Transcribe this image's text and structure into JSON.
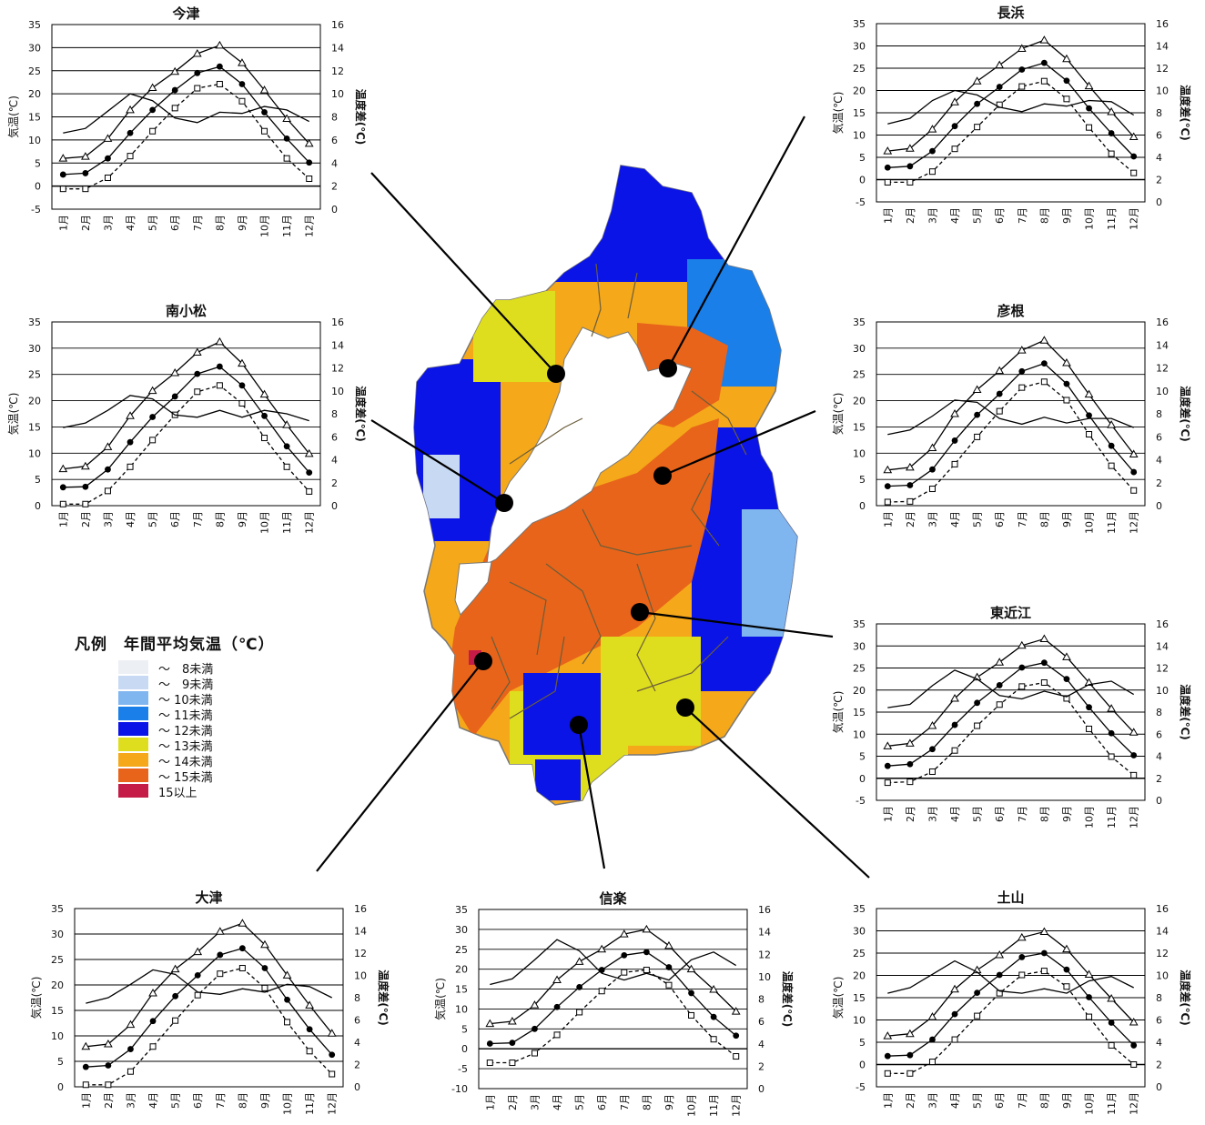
{
  "legend": {
    "title": "凡例　年間平均気温（℃）",
    "items": [
      {
        "label": "～　8未満",
        "color": "#eceff3"
      },
      {
        "label": "～　9未満",
        "color": "#c8daf3"
      },
      {
        "label": "～ 10未満",
        "color": "#7fb6ef"
      },
      {
        "label": "～ 11未満",
        "color": "#1a7fe8"
      },
      {
        "label": "～ 12未満",
        "color": "#0a14e6"
      },
      {
        "label": "～ 13未満",
        "color": "#dede1e"
      },
      {
        "label": "～ 14未満",
        "color": "#f5a81a"
      },
      {
        "label": "～ 15未満",
        "color": "#e8641a"
      },
      {
        "label": "15以上",
        "color": "#c41c46"
      }
    ]
  },
  "chart_common": {
    "categories": [
      "1月",
      "2月",
      "3月",
      "4月",
      "5月",
      "6月",
      "7月",
      "8月",
      "9月",
      "10月",
      "11月",
      "12月"
    ],
    "left_axis_label": "気温(℃)",
    "right_axis_label": "温度差(℃)",
    "right_ticks": [
      "0",
      "2",
      "4",
      "6",
      "8",
      "10",
      "12",
      "14",
      "16"
    ]
  },
  "chart_data": [
    {
      "type": "line",
      "title": "今津",
      "ylim": [
        -5,
        35
      ],
      "y2lim": [
        0,
        16
      ],
      "categories": [
        "1月",
        "2月",
        "3月",
        "4月",
        "5月",
        "6月",
        "7月",
        "8月",
        "9月",
        "10月",
        "11月",
        "12月"
      ],
      "series": [
        {
          "marker": "triangle",
          "values": [
            6.0,
            6.4,
            10.3,
            16.5,
            21.3,
            24.8,
            28.7,
            30.5,
            26.7,
            20.8,
            14.6,
            9.2
          ]
        },
        {
          "marker": "circle",
          "values": [
            2.5,
            2.8,
            6.0,
            11.5,
            16.5,
            20.8,
            24.5,
            25.9,
            22.1,
            16.0,
            10.3,
            5.1
          ]
        },
        {
          "marker": "square",
          "values": [
            -0.6,
            -0.6,
            1.8,
            6.5,
            11.9,
            16.9,
            21.2,
            22.1,
            18.4,
            11.9,
            6.0,
            1.6
          ]
        },
        {
          "marker": "none",
          "axis": "right",
          "values": [
            6.6,
            7.0,
            8.5,
            10.0,
            9.4,
            7.9,
            7.5,
            8.4,
            8.3,
            8.9,
            8.6,
            7.6
          ]
        }
      ]
    },
    {
      "type": "line",
      "title": "長浜",
      "ylim": [
        -5,
        35
      ],
      "y2lim": [
        0,
        16
      ],
      "categories": [
        "1月",
        "2月",
        "3月",
        "4月",
        "5月",
        "6月",
        "7月",
        "8月",
        "9月",
        "10月",
        "11月",
        "12月"
      ],
      "series": [
        {
          "marker": "triangle",
          "values": [
            6.4,
            7.0,
            11.3,
            17.4,
            22.1,
            25.7,
            29.4,
            31.3,
            27.1,
            21.0,
            15.2,
            9.6
          ]
        },
        {
          "marker": "circle",
          "values": [
            2.7,
            3.0,
            6.4,
            12.0,
            17.0,
            20.8,
            24.7,
            26.2,
            22.2,
            16.0,
            10.4,
            5.2
          ]
        },
        {
          "marker": "square",
          "values": [
            -0.6,
            -0.6,
            1.8,
            6.9,
            11.8,
            16.8,
            20.9,
            22.1,
            18.1,
            11.7,
            5.8,
            1.5
          ]
        },
        {
          "marker": "none",
          "axis": "right",
          "values": [
            7.0,
            7.5,
            9.1,
            10.0,
            9.6,
            8.5,
            8.1,
            8.8,
            8.6,
            9.1,
            9.0,
            7.8
          ]
        }
      ]
    },
    {
      "type": "line",
      "title": "南小松",
      "ylim": [
        0,
        35
      ],
      "y2lim": [
        0,
        16
      ],
      "categories": [
        "1月",
        "2月",
        "3月",
        "4月",
        "5月",
        "6月",
        "7月",
        "8月",
        "9月",
        "10月",
        "11月",
        "12月"
      ],
      "series": [
        {
          "marker": "triangle",
          "values": [
            7.0,
            7.5,
            11.2,
            17.1,
            21.9,
            25.3,
            29.2,
            31.2,
            27.1,
            21.2,
            15.4,
            9.9
          ]
        },
        {
          "marker": "circle",
          "values": [
            3.5,
            3.6,
            6.9,
            12.1,
            16.9,
            20.8,
            25.1,
            26.5,
            22.9,
            17.1,
            11.3,
            6.3
          ]
        },
        {
          "marker": "square",
          "values": [
            0.3,
            0.3,
            2.8,
            7.4,
            12.5,
            17.3,
            21.7,
            22.9,
            19.5,
            12.9,
            7.4,
            2.7
          ]
        },
        {
          "marker": "none",
          "axis": "right",
          "values": [
            6.8,
            7.2,
            8.3,
            9.6,
            9.3,
            7.9,
            7.7,
            8.3,
            7.7,
            8.3,
            8.0,
            7.4
          ]
        }
      ]
    },
    {
      "type": "line",
      "title": "彦根",
      "ylim": [
        0,
        35
      ],
      "y2lim": [
        0,
        16
      ],
      "categories": [
        "1月",
        "2月",
        "3月",
        "4月",
        "5月",
        "6月",
        "7月",
        "8月",
        "9月",
        "10月",
        "11月",
        "12月"
      ],
      "series": [
        {
          "marker": "triangle",
          "values": [
            6.8,
            7.3,
            11.0,
            17.5,
            22.1,
            25.7,
            29.6,
            31.5,
            27.2,
            21.2,
            15.4,
            9.8
          ]
        },
        {
          "marker": "circle",
          "values": [
            3.7,
            3.9,
            6.9,
            12.4,
            17.3,
            21.3,
            25.6,
            27.1,
            23.2,
            17.2,
            11.4,
            6.4
          ]
        },
        {
          "marker": "square",
          "values": [
            0.7,
            0.8,
            3.2,
            7.9,
            13.1,
            18.0,
            22.5,
            23.6,
            20.1,
            13.6,
            7.6,
            2.9
          ]
        },
        {
          "marker": "none",
          "axis": "right",
          "values": [
            6.2,
            6.6,
            7.8,
            9.2,
            9.0,
            7.6,
            7.1,
            7.7,
            7.2,
            7.6,
            7.6,
            6.8
          ]
        }
      ]
    },
    {
      "type": "line",
      "title": "東近江",
      "ylim": [
        -5,
        35
      ],
      "y2lim": [
        0,
        16
      ],
      "categories": [
        "1月",
        "2月",
        "3月",
        "4月",
        "5月",
        "6月",
        "7月",
        "8月",
        "9月",
        "10月",
        "11月",
        "12月"
      ],
      "series": [
        {
          "marker": "triangle",
          "values": [
            7.3,
            7.9,
            11.9,
            18.1,
            22.9,
            26.3,
            30.1,
            31.6,
            27.5,
            21.7,
            15.8,
            10.4
          ]
        },
        {
          "marker": "circle",
          "values": [
            2.8,
            3.2,
            6.6,
            12.1,
            17.1,
            21.1,
            25.1,
            26.2,
            22.5,
            16.1,
            10.2,
            5.2
          ]
        },
        {
          "marker": "square",
          "values": [
            -1.0,
            -0.8,
            1.5,
            6.3,
            11.9,
            16.7,
            20.8,
            21.7,
            18.1,
            11.2,
            4.9,
            0.7
          ]
        },
        {
          "marker": "none",
          "axis": "right",
          "values": [
            8.4,
            8.7,
            10.4,
            11.8,
            11.0,
            9.5,
            9.2,
            9.9,
            9.4,
            10.5,
            10.8,
            9.6
          ]
        }
      ]
    },
    {
      "type": "line",
      "title": "大津",
      "ylim": [
        0,
        35
      ],
      "y2lim": [
        0,
        16
      ],
      "categories": [
        "1月",
        "2月",
        "3月",
        "4月",
        "5月",
        "6月",
        "7月",
        "8月",
        "9月",
        "10月",
        "11月",
        "12月"
      ],
      "series": [
        {
          "marker": "triangle",
          "values": [
            7.9,
            8.4,
            12.2,
            18.4,
            23.1,
            26.5,
            30.5,
            32.1,
            27.9,
            21.9,
            16.0,
            10.5
          ]
        },
        {
          "marker": "circle",
          "values": [
            3.9,
            4.2,
            7.4,
            12.9,
            17.8,
            21.9,
            25.9,
            27.2,
            23.3,
            17.1,
            11.3,
            6.3
          ]
        },
        {
          "marker": "square",
          "values": [
            0.4,
            0.4,
            3.0,
            7.9,
            13.0,
            18.0,
            22.2,
            23.3,
            19.4,
            12.7,
            7.0,
            2.5
          ]
        },
        {
          "marker": "none",
          "axis": "right",
          "values": [
            7.5,
            8.0,
            9.2,
            10.5,
            10.1,
            8.5,
            8.3,
            8.8,
            8.5,
            9.2,
            9.0,
            8.0
          ]
        }
      ]
    },
    {
      "type": "line",
      "title": "信楽",
      "ylim": [
        -10,
        35
      ],
      "y2lim": [
        0,
        16
      ],
      "categories": [
        "1月",
        "2月",
        "3月",
        "4月",
        "5月",
        "6月",
        "7月",
        "8月",
        "9月",
        "10月",
        "11月",
        "12月"
      ],
      "series": [
        {
          "marker": "triangle",
          "values": [
            6.3,
            6.9,
            11.0,
            17.3,
            21.9,
            25.0,
            28.8,
            30.0,
            25.9,
            20.0,
            14.9,
            9.4
          ]
        },
        {
          "marker": "circle",
          "values": [
            1.3,
            1.5,
            5.0,
            10.5,
            15.5,
            19.8,
            23.5,
            24.3,
            20.5,
            14.0,
            8.0,
            3.3
          ]
        },
        {
          "marker": "square",
          "values": [
            -3.5,
            -3.5,
            -1.1,
            3.5,
            9.2,
            14.5,
            19.2,
            19.8,
            16.0,
            8.4,
            2.4,
            -1.9
          ]
        },
        {
          "marker": "none",
          "axis": "right",
          "values": [
            9.3,
            9.8,
            11.5,
            13.3,
            12.3,
            10.3,
            9.7,
            10.3,
            9.7,
            11.5,
            12.2,
            11.0
          ]
        }
      ]
    },
    {
      "type": "line",
      "title": "土山",
      "ylim": [
        -5,
        35
      ],
      "y2lim": [
        0,
        16
      ],
      "categories": [
        "1月",
        "2月",
        "3月",
        "4月",
        "5月",
        "6月",
        "7月",
        "8月",
        "9月",
        "10月",
        "11月",
        "12月"
      ],
      "series": [
        {
          "marker": "triangle",
          "values": [
            6.4,
            6.9,
            10.7,
            16.9,
            21.2,
            24.6,
            28.5,
            29.8,
            25.9,
            20.2,
            14.8,
            9.5
          ]
        },
        {
          "marker": "circle",
          "values": [
            1.9,
            2.1,
            5.6,
            11.3,
            16.1,
            20.1,
            24.1,
            25.0,
            21.3,
            15.1,
            9.4,
            4.3
          ]
        },
        {
          "marker": "square",
          "values": [
            -2.0,
            -2.0,
            0.6,
            5.6,
            10.9,
            16.0,
            20.1,
            21.0,
            17.5,
            10.7,
            4.3,
            0.0
          ]
        },
        {
          "marker": "none",
          "axis": "right",
          "values": [
            8.4,
            8.9,
            10.1,
            11.3,
            10.3,
            8.6,
            8.4,
            8.8,
            8.4,
            9.5,
            9.9,
            8.9
          ]
        }
      ]
    }
  ]
}
